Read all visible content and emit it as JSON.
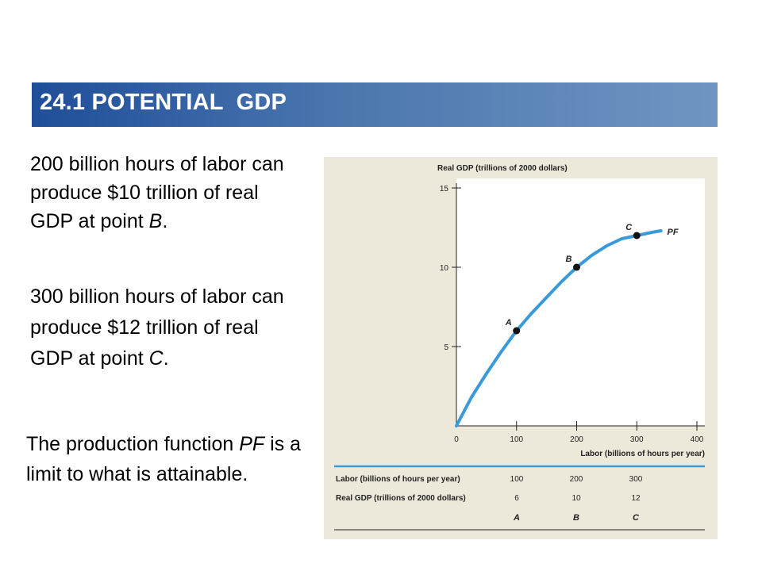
{
  "header": {
    "title": "24.1 POTENTIAL  GDP"
  },
  "text": {
    "p1_a": "200 billion hours of labor can produce $10 trillion of real GDP at point ",
    "p1_italic": "B",
    "p1_end": ".",
    "p2_a": "300 billion hours of labor can produce $12 trillion of real GDP at point ",
    "p2_italic": "C",
    "p2_end": ".",
    "p3_a": "The production function ",
    "p3_italic": "PF",
    "p3_b": " is a limit to what is attainable."
  },
  "chart_data": {
    "type": "line",
    "ylabel": "Real GDP (trillions of 2000 dollars)",
    "xlabel": "Labor (billions of hours per year)",
    "xlim": [
      0,
      400
    ],
    "ylim": [
      0,
      15
    ],
    "x_ticks": [
      0,
      100,
      200,
      300,
      400
    ],
    "y_ticks": [
      5,
      10,
      15
    ],
    "series": [
      {
        "name": "PF",
        "x": [
          0,
          25,
          50,
          75,
          100,
          125,
          150,
          175,
          200,
          225,
          250,
          275,
          300,
          325,
          340
        ],
        "y": [
          0,
          1.8,
          3.3,
          4.7,
          6.0,
          7.1,
          8.1,
          9.1,
          10.0,
          10.75,
          11.35,
          11.8,
          12.0,
          12.2,
          12.3
        ]
      }
    ],
    "points": [
      {
        "label": "A",
        "x": 100,
        "y": 6
      },
      {
        "label": "B",
        "x": 200,
        "y": 10
      },
      {
        "label": "C",
        "x": 300,
        "y": 12
      }
    ],
    "curve_color": "#3a9ad9",
    "grid": false,
    "table": {
      "row_labels": [
        "Labor (billions of hours per year)",
        "Real GDP (trillions of 2000 dollars)"
      ],
      "labor": [
        "100",
        "200",
        "300"
      ],
      "gdp": [
        "6",
        "10",
        "12"
      ],
      "points": [
        "A",
        "B",
        "C"
      ]
    }
  }
}
